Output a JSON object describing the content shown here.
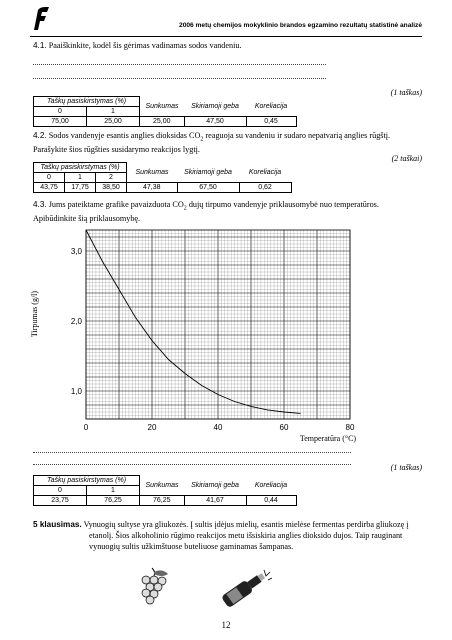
{
  "header": {
    "title": "2006 metų chemijos mokyklinio brandos egzamino rezultatų statistinė analizė"
  },
  "q41": {
    "num": "4.1.",
    "text": "Paaiškinkite, kodėl šis gėrimas vadinamas sodos vandeniu.",
    "points": "(1 taškas)",
    "table": {
      "group": "Taškų pasiskirstymas (%)",
      "cols": [
        "0",
        "1"
      ],
      "labels": [
        "Sunkumas",
        "Skiriamoji geba",
        "Koreliacija"
      ],
      "values": [
        "75,00",
        "25,00",
        "25,00",
        "47,50",
        "0,45"
      ]
    }
  },
  "q42": {
    "num": "4.2.",
    "text1": "Sodos vandenyje esantis anglies dioksidas CO",
    "sub": "2",
    "text2": " reaguoja su vandeniu ir sudaro nepatvarią anglies rūgštį.",
    "text3": "Parašykite šios rūgšties susidarymo reakcijos lygtį.",
    "points": "(2 taškai)",
    "table": {
      "group": "Taškų pasiskirstymas (%)",
      "cols": [
        "0",
        "1",
        "2"
      ],
      "labels": [
        "Sunkumas",
        "Skiriamoji geba",
        "Koreliacija"
      ],
      "values": [
        "43,75",
        "17,75",
        "38,50",
        "47,38",
        "67,50",
        "0,62"
      ]
    }
  },
  "q43": {
    "num": "4.3.",
    "text1": "Jums pateiktame grafike pavaizduota CO",
    "sub": "2",
    "text2": " dujų tirpumo vandenyje priklausomybė nuo temperatūros.",
    "text3": "Apibūdinkite šią priklausomybę.",
    "points": "(1 taškas)",
    "table": {
      "group": "Taškų pasiskirstymas (%)",
      "cols": [
        "0",
        "1"
      ],
      "labels": [
        "Sunkumas",
        "Skiriamoji geba",
        "Koreliacija"
      ],
      "values": [
        "23,75",
        "76,25",
        "76,25",
        "41,67",
        "0,44"
      ]
    }
  },
  "chart_data": {
    "type": "line",
    "title": "",
    "xlabel": "Temperatūra (°C)",
    "ylabel": "Tirpumas (g/l)",
    "xlim": [
      0,
      80
    ],
    "ylim": [
      0.6,
      3.3
    ],
    "x_ticks": [
      "0",
      "20",
      "40",
      "60",
      "80"
    ],
    "y_ticks": [
      "1,0",
      "2,0",
      "3,0"
    ],
    "grid": true,
    "x": [
      0,
      5,
      10,
      15,
      20,
      25,
      30,
      35,
      40,
      45,
      50,
      55,
      60,
      65
    ],
    "values": [
      3.35,
      2.85,
      2.45,
      2.05,
      1.72,
      1.45,
      1.25,
      1.08,
      0.95,
      0.85,
      0.78,
      0.73,
      0.7,
      0.68
    ]
  },
  "k5": {
    "label": "5 klausimas.",
    "text1": "Vynuogių sultyse yra gliukozės. Į sultis įdėjus mielių, esantis mielėse fermentas perdirba gliukozę į",
    "text2": "etanolį. Šios alkoholinio rūgimo reakcijos metu išsiskiria anglies dioksido dujos. Taip rauginant",
    "text3": "vynuogių sultis užkimštuose buteliuose gaminamas šampanas."
  },
  "page": {
    "number": "12"
  }
}
